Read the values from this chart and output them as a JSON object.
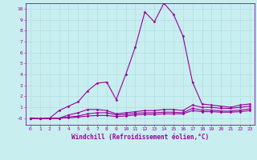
{
  "xlabel": "Windchill (Refroidissement éolien,°C)",
  "bg_color": "#c8eef0",
  "grid_color": "#aadddd",
  "line_color": "#990099",
  "xlim": [
    -0.5,
    23.5
  ],
  "ylim": [
    -0.6,
    10.5
  ],
  "yticks": [
    0,
    1,
    2,
    3,
    4,
    5,
    6,
    7,
    8,
    9,
    10
  ],
  "ytick_labels": [
    "-0",
    "1",
    "2",
    "3",
    "4",
    "5",
    "6",
    "7",
    "8",
    "9",
    "10"
  ],
  "xticks": [
    0,
    1,
    2,
    3,
    4,
    5,
    6,
    7,
    8,
    9,
    10,
    11,
    12,
    13,
    14,
    15,
    16,
    17,
    18,
    19,
    20,
    21,
    22,
    23
  ],
  "line1_x": [
    0,
    1,
    2,
    3,
    4,
    5,
    6,
    7,
    8,
    9,
    10,
    11,
    12,
    13,
    14,
    15,
    16,
    17,
    18,
    19,
    20,
    21,
    22,
    23
  ],
  "line1_y": [
    0.0,
    -0.05,
    0.0,
    0.7,
    1.1,
    1.5,
    2.5,
    3.2,
    3.3,
    1.7,
    4.0,
    6.5,
    9.7,
    8.8,
    10.5,
    9.5,
    7.5,
    3.3,
    1.3,
    1.2,
    1.1,
    1.0,
    1.2,
    1.3
  ],
  "line2_x": [
    0,
    1,
    2,
    3,
    4,
    5,
    6,
    7,
    8,
    9,
    10,
    11,
    12,
    13,
    14,
    15,
    16,
    17,
    18,
    19,
    20,
    21,
    22,
    23
  ],
  "line2_y": [
    0.0,
    -0.05,
    0.0,
    0.0,
    0.3,
    0.5,
    0.8,
    0.8,
    0.7,
    0.4,
    0.5,
    0.6,
    0.7,
    0.7,
    0.8,
    0.8,
    0.7,
    1.2,
    1.0,
    1.0,
    0.9,
    0.9,
    1.0,
    1.1
  ],
  "line3_x": [
    0,
    1,
    2,
    3,
    4,
    5,
    6,
    7,
    8,
    9,
    10,
    11,
    12,
    13,
    14,
    15,
    16,
    17,
    18,
    19,
    20,
    21,
    22,
    23
  ],
  "line3_y": [
    0.0,
    -0.05,
    0.0,
    0.0,
    0.1,
    0.2,
    0.4,
    0.5,
    0.5,
    0.3,
    0.35,
    0.45,
    0.5,
    0.5,
    0.55,
    0.55,
    0.5,
    0.9,
    0.75,
    0.75,
    0.65,
    0.65,
    0.75,
    0.85
  ],
  "line4_x": [
    0,
    1,
    2,
    3,
    4,
    5,
    6,
    7,
    8,
    9,
    10,
    11,
    12,
    13,
    14,
    15,
    16,
    17,
    18,
    19,
    20,
    21,
    22,
    23
  ],
  "line4_y": [
    0.0,
    -0.05,
    0.0,
    0.0,
    0.05,
    0.1,
    0.2,
    0.25,
    0.25,
    0.15,
    0.2,
    0.3,
    0.35,
    0.35,
    0.4,
    0.4,
    0.4,
    0.7,
    0.6,
    0.6,
    0.55,
    0.55,
    0.6,
    0.7
  ],
  "marker": "D",
  "marker_size": 1.5,
  "linewidth": 0.8,
  "tick_fontsize": 4.5,
  "xlabel_fontsize": 5.5
}
